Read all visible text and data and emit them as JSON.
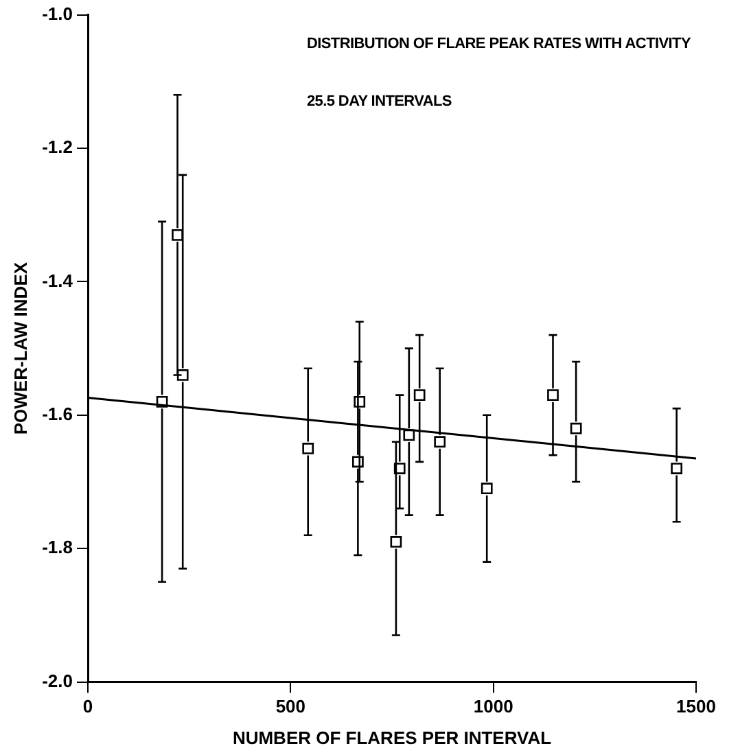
{
  "chart_data": {
    "type": "scatter",
    "xlabel": "NUMBER OF FLARES PER INTERVAL",
    "ylabel": "POWER-LAW INDEX",
    "annotations": [
      "DISTRIBUTION OF FLARE PEAK RATES WITH ACTIVITY",
      "25.5 DAY INTERVALS"
    ],
    "xlim": [
      0,
      1500
    ],
    "xticks": [
      0,
      500,
      1000,
      1500
    ],
    "ylim": [
      -2.0,
      -1.0
    ],
    "yticks": [
      {
        "value": -2.0,
        "label": "-2.0"
      },
      {
        "value": -1.8,
        "label": "-1.8"
      },
      {
        "value": -1.6,
        "label": "-1.6"
      },
      {
        "value": -1.4,
        "label": "-1.4"
      },
      {
        "value": -1.2,
        "label": "-1.2"
      },
      {
        "value": -1.0,
        "label": "-1.0"
      }
    ],
    "grid": false,
    "legend": false,
    "series": [
      {
        "color": "#000000",
        "marker": "square",
        "x": [
          183,
          221,
          234,
          543,
          670,
          666,
          760,
          769,
          792,
          818,
          868,
          984,
          1147,
          1204,
          1452
        ],
        "values": [
          -1.58,
          -1.33,
          -1.54,
          -1.65,
          -1.58,
          -1.67,
          -1.79,
          -1.68,
          -1.63,
          -1.57,
          -1.64,
          -1.71,
          -1.57,
          -1.62,
          -1.68
        ],
        "errors": [
          [
            -1.85,
            -1.31
          ],
          [
            -1.54,
            -1.12
          ],
          [
            -1.83,
            -1.24
          ],
          [
            -1.78,
            -1.53
          ],
          [
            -1.7,
            -1.46
          ],
          [
            -1.81,
            -1.52
          ],
          [
            -1.93,
            -1.64
          ],
          [
            -1.74,
            -1.57
          ],
          [
            -1.75,
            -1.5
          ],
          [
            -1.67,
            -1.48
          ],
          [
            -1.75,
            -1.53
          ],
          [
            -1.82,
            -1.6
          ],
          [
            -1.66,
            -1.48
          ],
          [
            -1.7,
            -1.52
          ],
          [
            -1.76,
            -1.59
          ]
        ]
      },
      {
        "type": "line",
        "color": "#000000",
        "marker": "none",
        "line_style": "solid",
        "x": [
          0,
          1500
        ],
        "values": [
          -1.574,
          -1.665
        ]
      }
    ]
  }
}
